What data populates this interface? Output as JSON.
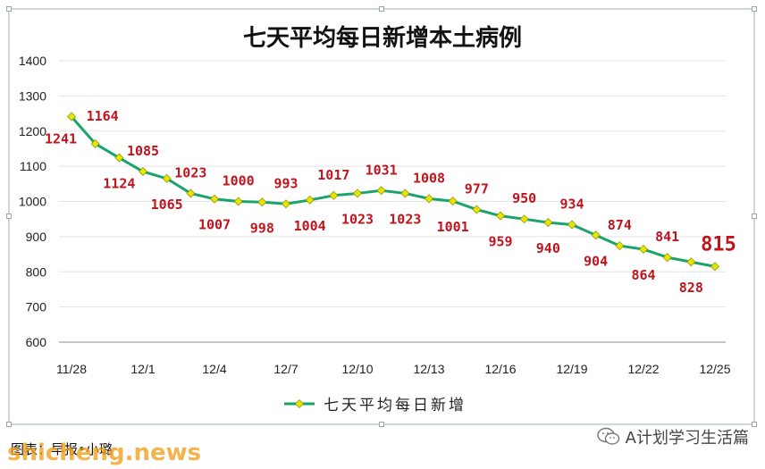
{
  "chart_data": {
    "type": "line",
    "title": "七天平均每日新增本土病例",
    "x": [
      "11/28",
      "11/29",
      "11/30",
      "12/1",
      "12/2",
      "12/3",
      "12/4",
      "12/5",
      "12/6",
      "12/7",
      "12/8",
      "12/9",
      "12/10",
      "12/11",
      "12/12",
      "12/13",
      "12/14",
      "12/15",
      "12/16",
      "12/17",
      "12/18",
      "12/19",
      "12/20",
      "12/21",
      "12/22",
      "12/23",
      "12/24",
      "12/25"
    ],
    "x_tick_labels": [
      "11/28",
      "12/1",
      "12/4",
      "12/7",
      "12/10",
      "12/13",
      "12/16",
      "12/19",
      "12/22",
      "12/25"
    ],
    "series": [
      {
        "name": "七天平均每日新增",
        "values": [
          1241,
          1164,
          1124,
          1085,
          1065,
          1023,
          1007,
          1000,
          998,
          993,
          1004,
          1017,
          1023,
          1031,
          1023,
          1008,
          1001,
          977,
          959,
          950,
          940,
          934,
          904,
          874,
          864,
          841,
          828,
          815
        ],
        "color": "#1aa36b",
        "marker_color": "#e6e600"
      }
    ],
    "ylim": [
      600,
      1400
    ],
    "yticks": [
      600,
      700,
      800,
      900,
      1000,
      1100,
      1200,
      1300,
      1400
    ],
    "grid": true,
    "legend": "bottom",
    "label_color": "#c0141c",
    "highlight_last": true
  },
  "footer": {
    "credit": "图表：早报•小璐",
    "watermark": "shicheng.news",
    "account": "A计划学习生活篇"
  }
}
